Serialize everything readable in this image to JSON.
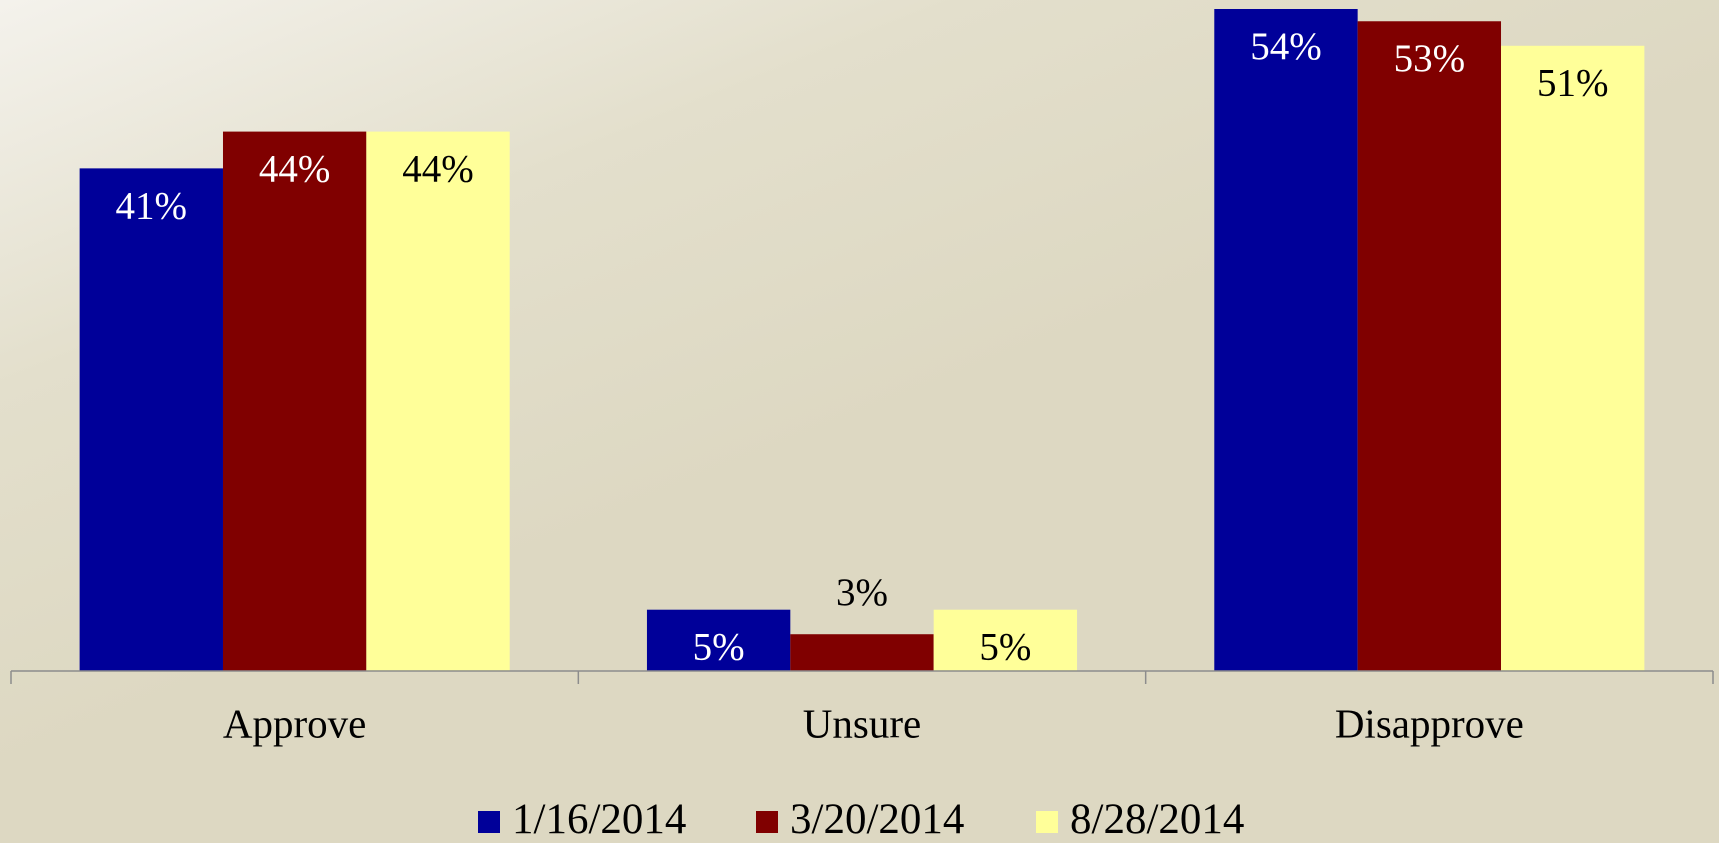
{
  "chart_data": {
    "type": "bar",
    "categories": [
      "Approve",
      "Unsure",
      "Disapprove"
    ],
    "series": [
      {
        "name": "1/16/2014",
        "color": "#000099",
        "values": [
          41,
          5,
          54
        ],
        "value_labels": [
          "41%",
          "5%",
          "54%"
        ]
      },
      {
        "name": "3/20/2014",
        "color": "#800000",
        "values": [
          44,
          3,
          53
        ],
        "value_labels": [
          "44%",
          "3%",
          "53%"
        ]
      },
      {
        "name": "8/28/2014",
        "color": "#ffff99",
        "values": [
          44,
          5,
          51
        ],
        "value_labels": [
          "44%",
          "5%",
          "51%"
        ]
      }
    ],
    "ylim": [
      0,
      54
    ],
    "legend": "bottom"
  }
}
